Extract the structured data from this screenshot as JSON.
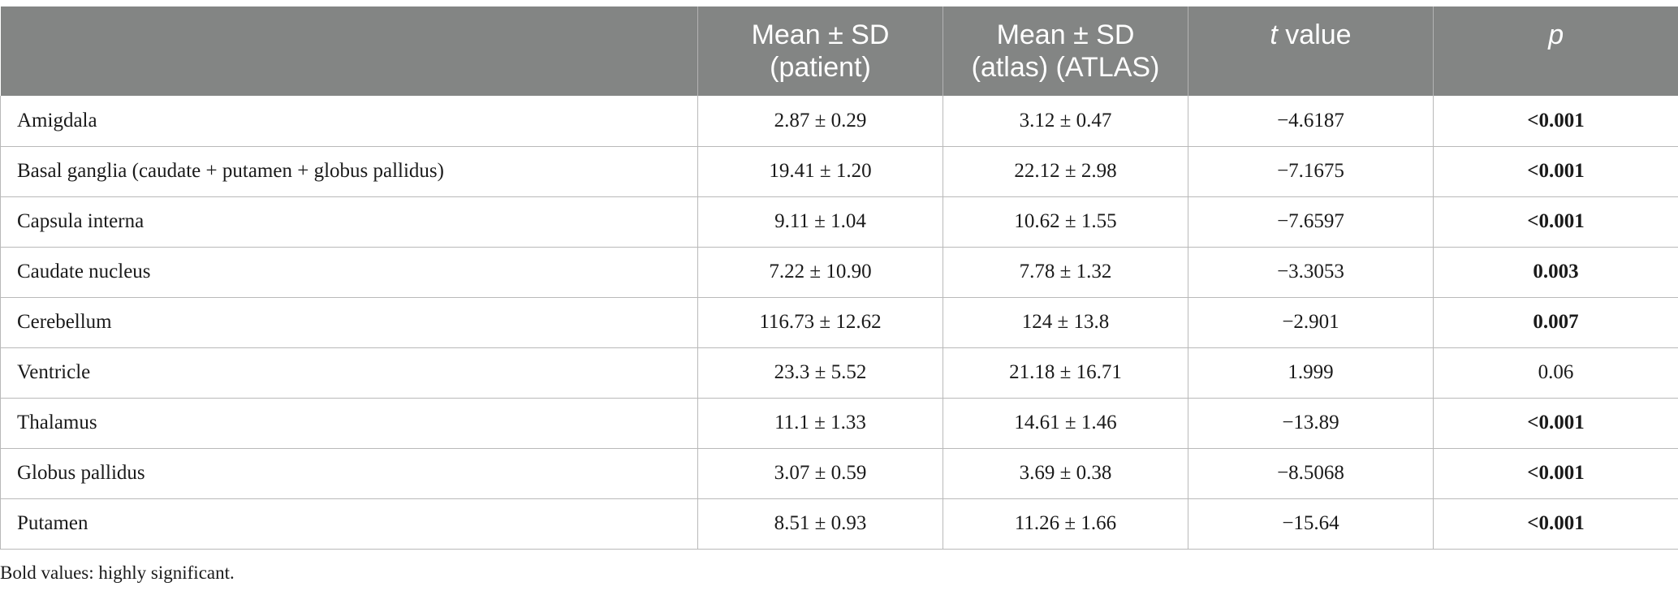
{
  "table": {
    "headers": [
      {
        "line1": "",
        "line2": ""
      },
      {
        "line1": "Mean ± SD",
        "line2": "(patient)"
      },
      {
        "line1": "Mean ± SD",
        "line2": "(atlas) (ATLAS)"
      },
      {
        "italic": "t",
        "rest": " value"
      },
      {
        "italic": "p"
      }
    ],
    "rows": [
      {
        "structure": "Amigdala",
        "patient": "2.87 ± 0.29",
        "atlas": "3.12 ± 0.47",
        "t": "−4.6187",
        "p": "<0.001",
        "p_bold": true
      },
      {
        "structure": "Basal ganglia (caudate + putamen + globus pallidus)",
        "patient": "19.41 ± 1.20",
        "atlas": "22.12 ± 2.98",
        "t": "−7.1675",
        "p": "<0.001",
        "p_bold": true
      },
      {
        "structure": "Capsula interna",
        "patient": "9.11 ± 1.04",
        "atlas": "10.62 ± 1.55",
        "t": "−7.6597",
        "p": "<0.001",
        "p_bold": true
      },
      {
        "structure": "Caudate nucleus",
        "patient": "7.22 ± 10.90",
        "atlas": "7.78 ± 1.32",
        "t": "−3.3053",
        "p": "0.003",
        "p_bold": true
      },
      {
        "structure": "Cerebellum",
        "patient": "116.73 ± 12.62",
        "atlas": "124 ± 13.8",
        "t": "−2.901",
        "p": "0.007",
        "p_bold": true
      },
      {
        "structure": "Ventricle",
        "patient": "23.3 ± 5.52",
        "atlas": "21.18 ± 16.71",
        "t": "1.999",
        "p": "0.06",
        "p_bold": false
      },
      {
        "structure": "Thalamus",
        "patient": "11.1 ± 1.33",
        "atlas": "14.61 ± 1.46",
        "t": "−13.89",
        "p": "<0.001",
        "p_bold": true
      },
      {
        "structure": "Globus pallidus",
        "patient": "3.07 ± 0.59",
        "atlas": "3.69 ± 0.38",
        "t": "−8.5068",
        "p": "<0.001",
        "p_bold": true
      },
      {
        "structure": "Putamen",
        "patient": "8.51 ± 0.93",
        "atlas": "11.26 ± 1.66",
        "t": "−15.64",
        "p": "<0.001",
        "p_bold": true
      }
    ]
  },
  "footnote": "Bold values: highly significant.",
  "colors": {
    "header_bg": "#838584",
    "header_text": "#ffffff",
    "grid": "#b9b9b9"
  }
}
